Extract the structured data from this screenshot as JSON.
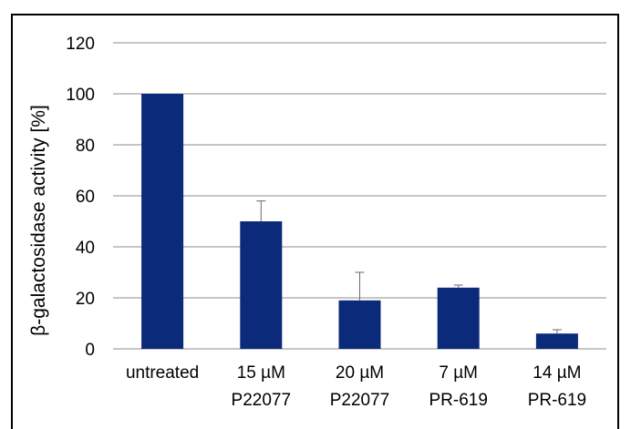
{
  "chart_data": {
    "type": "bar",
    "title": "",
    "xlabel": "",
    "ylabel": "β-galactosidase activity [%]",
    "ylim": [
      0,
      120
    ],
    "yticks": [
      0,
      20,
      40,
      60,
      80,
      100,
      120
    ],
    "categories": [
      [
        "untreated"
      ],
      [
        "15 µM",
        "P22077"
      ],
      [
        "20 µM",
        "P22077"
      ],
      [
        "7 µM",
        "PR-619"
      ],
      [
        "14 µM",
        "PR-619"
      ]
    ],
    "values": [
      100,
      50,
      19,
      24,
      6
    ],
    "error_plus": [
      0,
      8,
      11,
      1,
      1.5
    ],
    "grid": "horizontal",
    "legend": "none",
    "colors": {
      "bar": "#0b2a7a",
      "grid": "#8c8c8c",
      "border": "#000000"
    }
  }
}
